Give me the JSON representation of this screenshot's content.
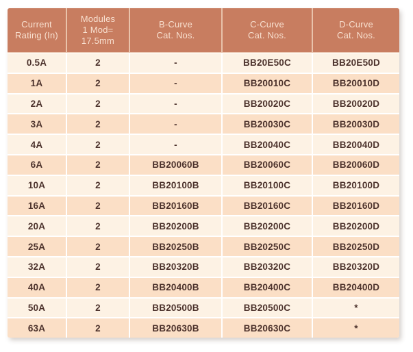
{
  "table": {
    "name": "MCB catalog numbers",
    "columns": [
      {
        "label": "Current\nRating (In)"
      },
      {
        "label": "Modules\n1 Mod=\n17.5mm"
      },
      {
        "label": "B-Curve\nCat. Nos."
      },
      {
        "label": "C-Curve\nCat. Nos."
      },
      {
        "label": "D-Curve\nCat. Nos."
      }
    ],
    "rows": [
      [
        "0.5A",
        "2",
        "-",
        "BB20E50C",
        "BB20E50D"
      ],
      [
        "1A",
        "2",
        "-",
        "BB20010C",
        "BB20010D"
      ],
      [
        "2A",
        "2",
        "-",
        "BB20020C",
        "BB20020D"
      ],
      [
        "3A",
        "2",
        "-",
        "BB20030C",
        "BB20030D"
      ],
      [
        "4A",
        "2",
        "-",
        "BB20040C",
        "BB20040D"
      ],
      [
        "6A",
        "2",
        "BB20060B",
        "BB20060C",
        "BB20060D"
      ],
      [
        "10A",
        "2",
        "BB20100B",
        "BB20100C",
        "BB20100D"
      ],
      [
        "16A",
        "2",
        "BB20160B",
        "BB20160C",
        "BB20160D"
      ],
      [
        "20A",
        "2",
        "BB20200B",
        "BB20200C",
        "BB20200D"
      ],
      [
        "25A",
        "2",
        "BB20250B",
        "BB20250C",
        "BB20250D"
      ],
      [
        "32A",
        "2",
        "BB20320B",
        "BB20320C",
        "BB20320D"
      ],
      [
        "40A",
        "2",
        "BB20400B",
        "BB20400C",
        "BB20400D"
      ],
      [
        "50A",
        "2",
        "BB20500B",
        "BB20500C",
        "*"
      ],
      [
        "63A",
        "2",
        "BB20630B",
        "BB20630C",
        "*"
      ]
    ],
    "colors": {
      "header_bg": "#c87d60",
      "header_text": "#f8e0d0",
      "row_light": "#fdf2e4",
      "row_dark": "#fbdfc6",
      "body_text": "#4c322c",
      "header_divider": "#e9c3ab",
      "body_divider": "#ffffff"
    }
  }
}
